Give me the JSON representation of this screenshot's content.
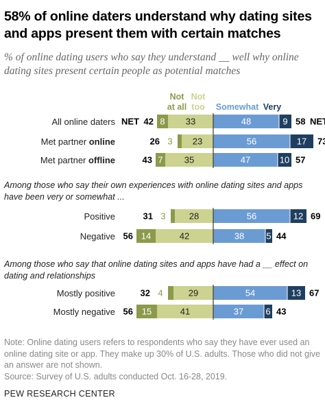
{
  "title": "58% of online daters understand why dating sites and apps present them with certain matches",
  "subtitle": "% of online dating users who say they understand __ well why online dating sites present certain people as potential matches",
  "colors": {
    "not_at_all": "#8c9a4b",
    "not_too": "#ccd28f",
    "somewhat": "#6b9bd3",
    "very": "#1f3f60",
    "divider": "#444444"
  },
  "chart_data": {
    "type": "bar",
    "stacked": "diverging",
    "legend": {
      "not_at_all": "Not at all",
      "not_too": "Not too",
      "somewhat": "Somewhat",
      "very": "Very"
    },
    "net_label": "NET",
    "groups": [
      {
        "label": "",
        "rows": [
          {
            "label": "All online daters",
            "label_bold": "",
            "not_at_all": 8,
            "not_too": 33,
            "somewhat": 48,
            "very": 9,
            "net_neg": 42,
            "net_pos": 58,
            "show_net": true
          },
          {
            "label": "Met partner ",
            "label_bold": "online",
            "not_at_all": 3,
            "not_too": 23,
            "somewhat": 56,
            "very": 17,
            "net_neg": 26,
            "net_pos": 73,
            "show_net": false
          },
          {
            "label": "Met partner ",
            "label_bold": "offline",
            "not_at_all": 7,
            "not_too": 35,
            "somewhat": 47,
            "very": 10,
            "net_neg": 43,
            "net_pos": 57,
            "show_net": false
          }
        ]
      },
      {
        "label": "Among those who say their own experiences with online dating sites and apps have been very or somewhat ...",
        "rows": [
          {
            "label": "Positive",
            "label_bold": "",
            "not_at_all": 3,
            "not_too": 28,
            "somewhat": 56,
            "very": 12,
            "net_neg": 31,
            "net_pos": 69,
            "show_net": false
          },
          {
            "label": "Negative",
            "label_bold": "",
            "not_at_all": 14,
            "not_too": 42,
            "somewhat": 38,
            "very": 5,
            "net_neg": 56,
            "net_pos": 44,
            "show_net": false
          }
        ]
      },
      {
        "label": "Among those who say that online dating sites and apps have had a __ effect on dating and relationships",
        "rows": [
          {
            "label": "Mostly positive",
            "label_bold": "",
            "not_at_all": 4,
            "not_too": 29,
            "somewhat": 54,
            "very": 13,
            "net_neg": 32,
            "net_pos": 67,
            "show_net": false
          },
          {
            "label": "Mostly negative",
            "label_bold": "",
            "not_at_all": 15,
            "not_too": 41,
            "somewhat": 37,
            "very": 6,
            "net_neg": 56,
            "net_pos": 43,
            "show_net": false
          }
        ]
      }
    ]
  },
  "note": "Note: Online dating users refers to respondents who say they have ever used an online dating site or app. They make up 30% of U.S. adults. Those who did not give an answer are not shown.",
  "source": "Source: Survey of U.S. adults conducted Oct. 16-28, 2019.",
  "brand": "PEW RESEARCH CENTER"
}
